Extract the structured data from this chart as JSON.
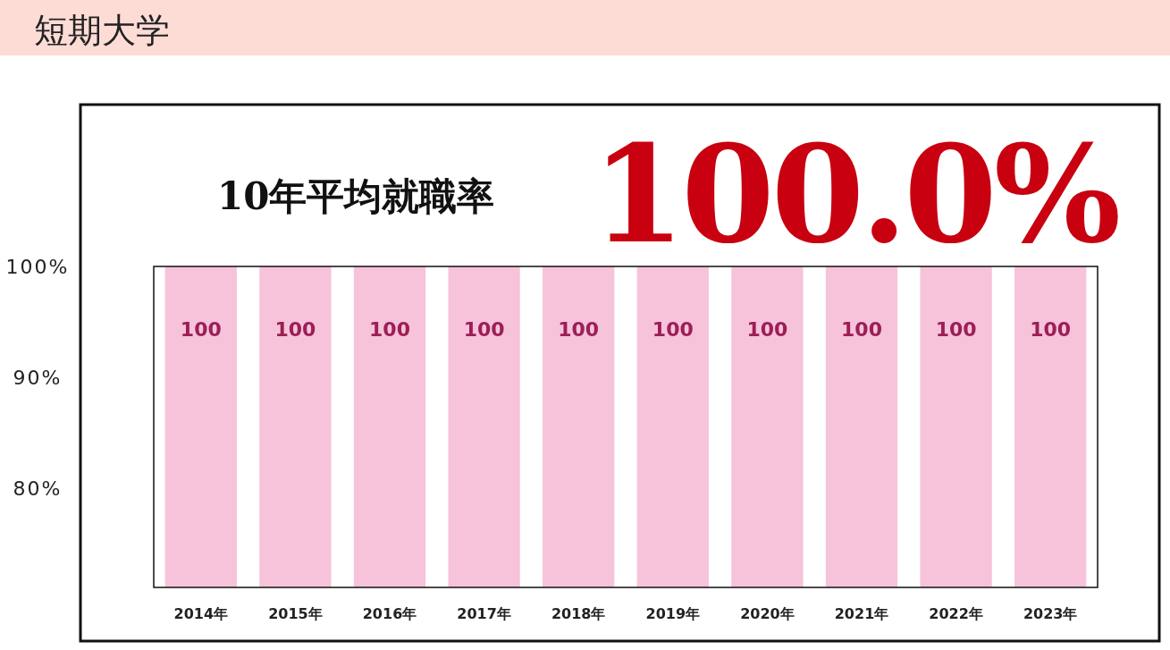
{
  "chart_data": {
    "type": "bar",
    "title": "短期大学",
    "subtitle": "10年平均就職率",
    "annotations": [
      "100.0%"
    ],
    "categories": [
      "2014年",
      "2015年",
      "2016年",
      "2017年",
      "2018年",
      "2019年",
      "2020年",
      "2021年",
      "2022年",
      "2023年"
    ],
    "values": [
      100,
      100,
      100,
      100,
      100,
      100,
      100,
      100,
      100,
      100
    ],
    "color": "#f6c3da",
    "ylim": [
      71,
      100
    ],
    "yticks": [
      {
        "value": 100,
        "label": "100%"
      },
      {
        "value": 90,
        "label": "90%"
      },
      {
        "value": 80,
        "label": "80%"
      }
    ],
    "data_labels": true
  }
}
